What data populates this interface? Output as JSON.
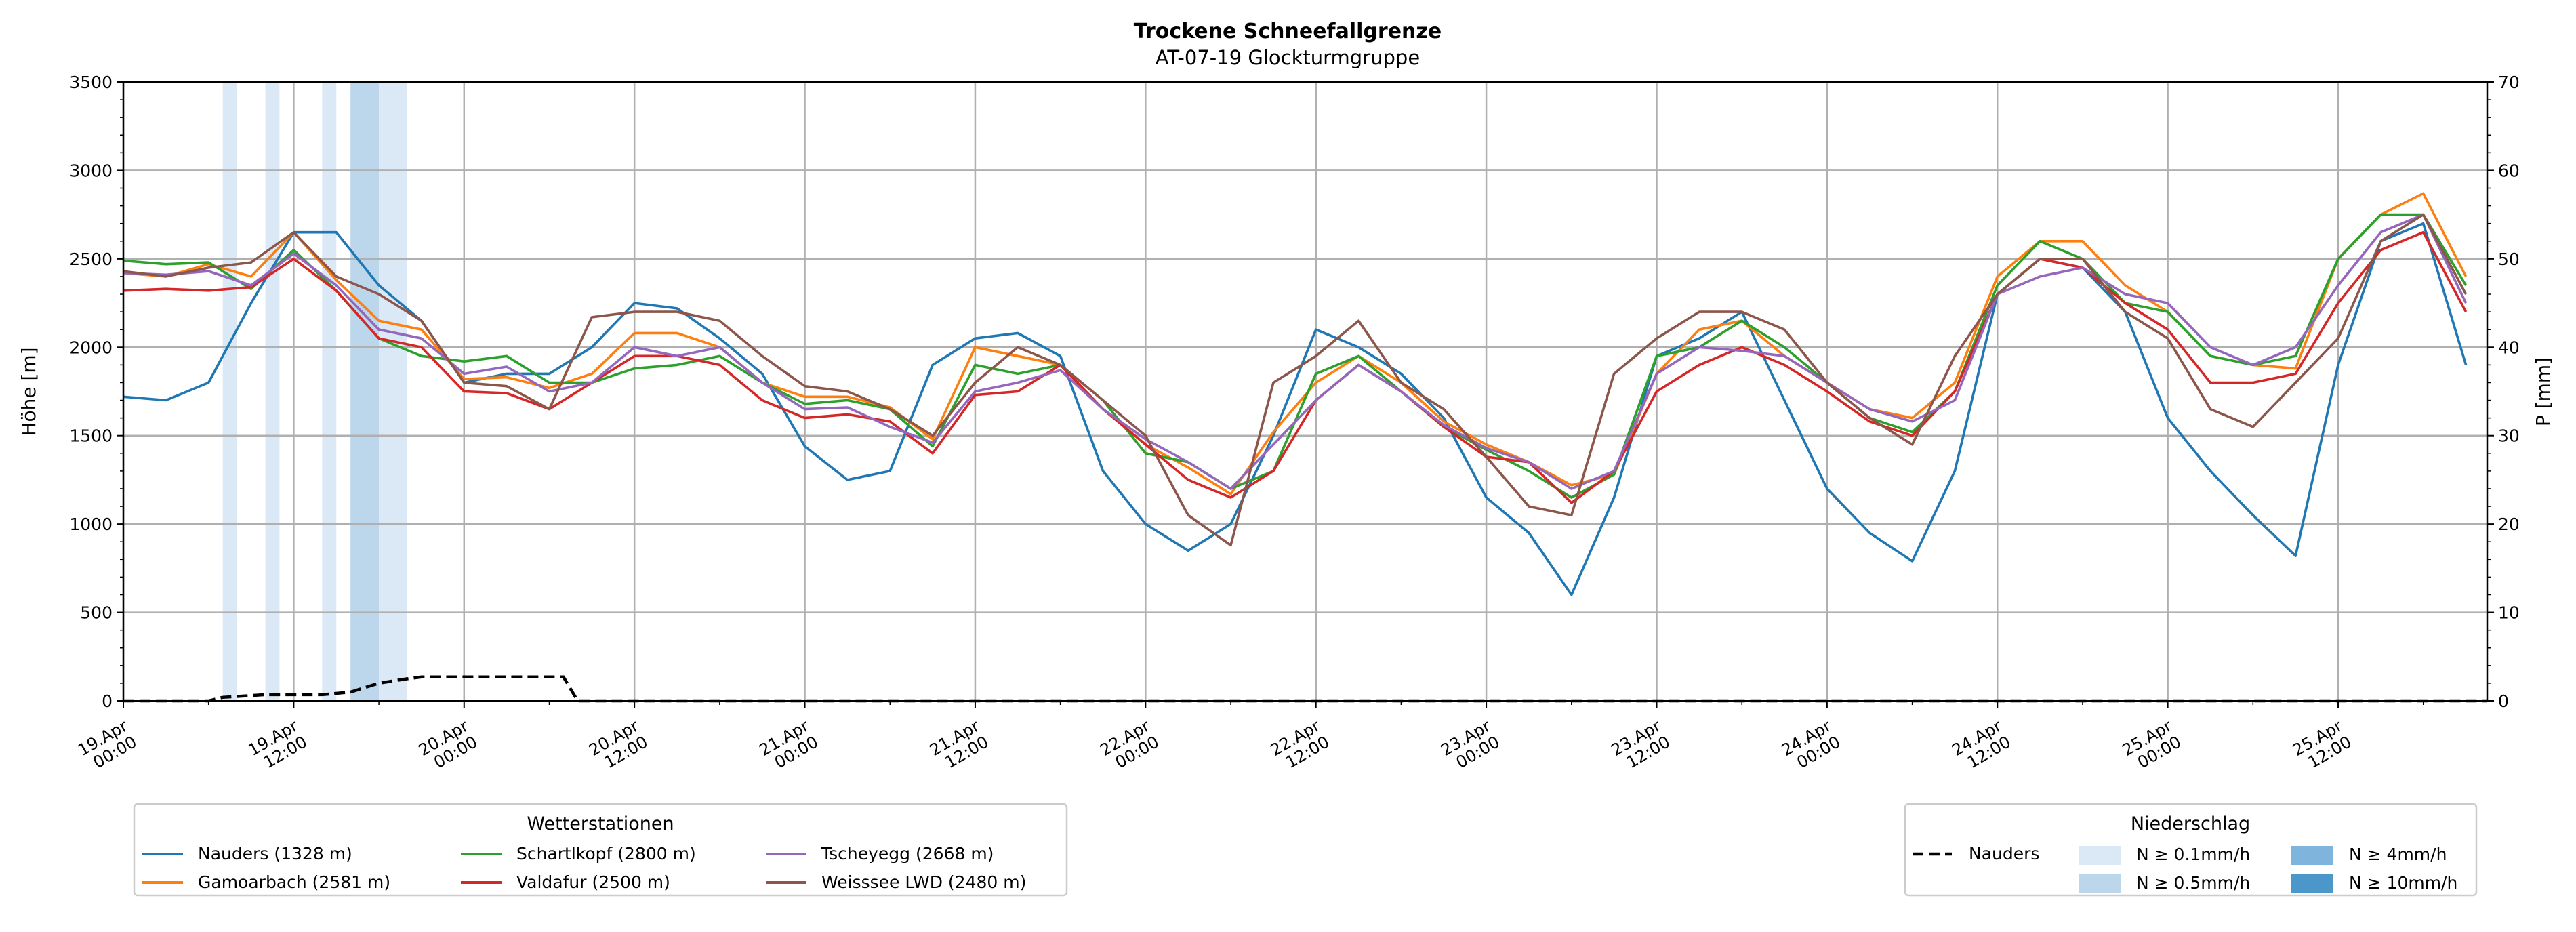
{
  "chart_data": {
    "type": "line",
    "title": "Trockene Schneefallgrenze",
    "subtitle": "AT-07-19 Glockturmgruppe",
    "ylabel": "Höhe [m]",
    "ylabel_right": "P [mm]",
    "ylim": [
      0,
      3500
    ],
    "ylim_right": [
      0,
      70
    ],
    "yticks": [
      0,
      500,
      1000,
      1500,
      2000,
      2500,
      3000,
      3500
    ],
    "yticks_right": [
      0,
      10,
      20,
      30,
      40,
      50,
      60,
      70
    ],
    "x_unit": "hours since 19.Apr 00:00",
    "xlim": [
      0,
      166.5
    ],
    "xticks": [
      {
        "hour": 0,
        "label": [
          "19.Apr",
          "00:00"
        ]
      },
      {
        "hour": 12,
        "label": [
          "19.Apr",
          "12:00"
        ]
      },
      {
        "hour": 24,
        "label": [
          "20.Apr",
          "00:00"
        ]
      },
      {
        "hour": 36,
        "label": [
          "20.Apr",
          "12:00"
        ]
      },
      {
        "hour": 48,
        "label": [
          "21.Apr",
          "00:00"
        ]
      },
      {
        "hour": 60,
        "label": [
          "21.Apr",
          "12:00"
        ]
      },
      {
        "hour": 72,
        "label": [
          "22.Apr",
          "00:00"
        ]
      },
      {
        "hour": 84,
        "label": [
          "22.Apr",
          "12:00"
        ]
      },
      {
        "hour": 96,
        "label": [
          "23.Apr",
          "00:00"
        ]
      },
      {
        "hour": 108,
        "label": [
          "23.Apr",
          "12:00"
        ]
      },
      {
        "hour": 120,
        "label": [
          "24.Apr",
          "00:00"
        ]
      },
      {
        "hour": 132,
        "label": [
          "24.Apr",
          "12:00"
        ]
      },
      {
        "hour": 144,
        "label": [
          "25.Apr",
          "00:00"
        ]
      },
      {
        "hour": 156,
        "label": [
          "25.Apr",
          "12:00"
        ]
      }
    ],
    "grid": true,
    "x_step_hours": 3,
    "series": [
      {
        "name": "Nauders (1328 m)",
        "color": "#1f77b4",
        "values": [
          1720,
          1700,
          1800,
          2250,
          2650,
          2650,
          2350,
          2150,
          1800,
          1850,
          1850,
          2000,
          2250,
          2220,
          2050,
          1850,
          1440,
          1250,
          1300,
          1900,
          2050,
          2080,
          1950,
          1300,
          1000,
          850,
          1000,
          1500,
          2100,
          2000,
          1850,
          1600,
          1150,
          950,
          600,
          1150,
          1950,
          2050,
          2200,
          1700,
          1200,
          950,
          790,
          1300,
          2300,
          2500,
          2450,
          2200,
          1600,
          1300,
          1050,
          820,
          1900,
          2600,
          2700,
          1900
        ]
      },
      {
        "name": "Gamoarbach (2581 m)",
        "color": "#ff7f0e",
        "values": [
          2420,
          2400,
          2470,
          2400,
          2650,
          2380,
          2150,
          2100,
          1820,
          1830,
          1770,
          1850,
          2080,
          2080,
          2000,
          1800,
          1720,
          1720,
          1660,
          1480,
          2000,
          1950,
          1900,
          1650,
          1450,
          1320,
          1170,
          1520,
          1800,
          1950,
          1800,
          1580,
          1450,
          1350,
          1220,
          1280,
          1850,
          2100,
          2150,
          1950,
          1800,
          1650,
          1600,
          1800,
          2400,
          2600,
          2600,
          2350,
          2200,
          1950,
          1900,
          1880,
          2500,
          2750,
          2870,
          2400
        ]
      },
      {
        "name": "Schartlkopf (2800 m)",
        "color": "#2ca02c",
        "values": [
          2490,
          2470,
          2480,
          2330,
          2550,
          2320,
          2050,
          1950,
          1920,
          1950,
          1800,
          1800,
          1880,
          1900,
          1950,
          1800,
          1680,
          1700,
          1650,
          1440,
          1900,
          1850,
          1900,
          1700,
          1400,
          1350,
          1200,
          1300,
          1850,
          1950,
          1750,
          1550,
          1420,
          1300,
          1150,
          1280,
          1950,
          2000,
          2150,
          2000,
          1800,
          1600,
          1520,
          1750,
          2350,
          2600,
          2500,
          2250,
          2200,
          1950,
          1900,
          1950,
          2500,
          2750,
          2750,
          2350
        ]
      },
      {
        "name": "Valdafur (2500 m)",
        "color": "#d62728",
        "values": [
          2320,
          2330,
          2320,
          2340,
          2500,
          2320,
          2050,
          2000,
          1750,
          1740,
          1650,
          1800,
          1950,
          1950,
          1900,
          1700,
          1600,
          1620,
          1580,
          1400,
          1730,
          1750,
          1900,
          1650,
          1450,
          1250,
          1150,
          1300,
          1700,
          1900,
          1750,
          1550,
          1380,
          1350,
          1120,
          1300,
          1750,
          1900,
          2000,
          1900,
          1750,
          1580,
          1500,
          1750,
          2300,
          2500,
          2450,
          2250,
          2100,
          1800,
          1800,
          1850,
          2250,
          2550,
          2650,
          2200
        ]
      },
      {
        "name": "Tscheyegg (2668 m)",
        "color": "#9467bd",
        "values": [
          2420,
          2410,
          2430,
          2350,
          2530,
          2350,
          2100,
          2050,
          1850,
          1890,
          1750,
          1800,
          2000,
          1950,
          2000,
          1800,
          1650,
          1660,
          1550,
          1460,
          1750,
          1800,
          1870,
          1650,
          1480,
          1350,
          1200,
          1450,
          1700,
          1900,
          1750,
          1560,
          1430,
          1350,
          1200,
          1300,
          1850,
          2000,
          1980,
          1950,
          1800,
          1650,
          1580,
          1700,
          2300,
          2400,
          2450,
          2300,
          2250,
          2000,
          1900,
          2000,
          2350,
          2650,
          2750,
          2250
        ]
      },
      {
        "name": "Weisssee LWD (2480 m)",
        "color": "#8c564b",
        "values": [
          2430,
          2400,
          2450,
          2480,
          2650,
          2400,
          2300,
          2150,
          1800,
          1780,
          1650,
          2170,
          2200,
          2200,
          2150,
          1950,
          1780,
          1750,
          1650,
          1500,
          1800,
          2000,
          1900,
          1700,
          1500,
          1050,
          880,
          1800,
          1950,
          2150,
          1800,
          1650,
          1380,
          1100,
          1050,
          1850,
          2050,
          2200,
          2200,
          2100,
          1800,
          1600,
          1450,
          1950,
          2300,
          2500,
          2500,
          2200,
          2050,
          1650,
          1550,
          1800,
          2050,
          2600,
          2750,
          2300
        ]
      }
    ],
    "precip_series": {
      "name": "Nauders",
      "color": "#000000",
      "axis": "right",
      "points": [
        [
          0,
          0
        ],
        [
          6,
          0
        ],
        [
          7,
          0.4
        ],
        [
          10,
          0.7
        ],
        [
          14,
          0.7
        ],
        [
          16,
          1.0
        ],
        [
          18,
          2.0
        ],
        [
          20,
          2.5
        ],
        [
          21,
          2.7
        ],
        [
          31,
          2.7
        ],
        [
          32,
          0
        ],
        [
          166.5,
          0
        ]
      ]
    },
    "precip_bands": [
      {
        "start": 7,
        "end": 8,
        "level": "N ≥ 0.1mm/h",
        "color": "#dbe9f6"
      },
      {
        "start": 10,
        "end": 11,
        "level": "N ≥ 0.1mm/h",
        "color": "#dbe9f6"
      },
      {
        "start": 14,
        "end": 15,
        "level": "N ≥ 0.1mm/h",
        "color": "#dbe9f6"
      },
      {
        "start": 16,
        "end": 18,
        "level": "N ≥ 0.5mm/h",
        "color": "#bcd6eb"
      },
      {
        "start": 18,
        "end": 20,
        "level": "N ≥ 0.1mm/h",
        "color": "#dbe9f6"
      }
    ],
    "legend_stations": {
      "title": "Wetterstationen",
      "placement": "bottom-left"
    },
    "legend_precip": {
      "title": "Niederschlag",
      "placement": "bottom-right",
      "line_label": "Nauders",
      "items": [
        {
          "label": "N ≥ 0.1mm/h",
          "color": "#dbe9f6"
        },
        {
          "label": "N ≥ 0.5mm/h",
          "color": "#bcd6eb"
        },
        {
          "label": "N ≥ 4mm/h",
          "color": "#7fb5dc"
        },
        {
          "label": "N ≥ 10mm/h",
          "color": "#4b97c9"
        }
      ]
    }
  }
}
